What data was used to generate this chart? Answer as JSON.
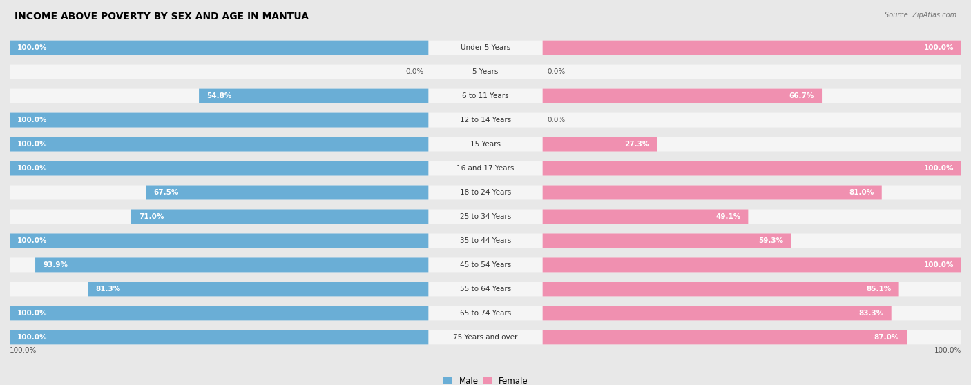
{
  "title": "INCOME ABOVE POVERTY BY SEX AND AGE IN MANTUA",
  "source": "Source: ZipAtlas.com",
  "male_color": "#6aaed6",
  "female_color": "#f090b0",
  "background_color": "#e8e8e8",
  "bar_background_color": "#f5f5f5",
  "categories": [
    "Under 5 Years",
    "5 Years",
    "6 to 11 Years",
    "12 to 14 Years",
    "15 Years",
    "16 and 17 Years",
    "18 to 24 Years",
    "25 to 34 Years",
    "35 to 44 Years",
    "45 to 54 Years",
    "55 to 64 Years",
    "65 to 74 Years",
    "75 Years and over"
  ],
  "male_values": [
    100.0,
    0.0,
    54.8,
    100.0,
    100.0,
    100.0,
    67.5,
    71.0,
    100.0,
    93.9,
    81.3,
    100.0,
    100.0
  ],
  "female_values": [
    100.0,
    0.0,
    66.7,
    0.0,
    27.3,
    100.0,
    81.0,
    49.1,
    59.3,
    100.0,
    85.1,
    83.3,
    87.0
  ],
  "male_label": "Male",
  "female_label": "Female",
  "title_fontsize": 10,
  "label_fontsize": 7.5,
  "value_fontsize": 7.5,
  "tick_fontsize": 7.5,
  "legend_fontsize": 8.5,
  "bottom_left_label": "100.0%",
  "bottom_right_label": "100.0%"
}
